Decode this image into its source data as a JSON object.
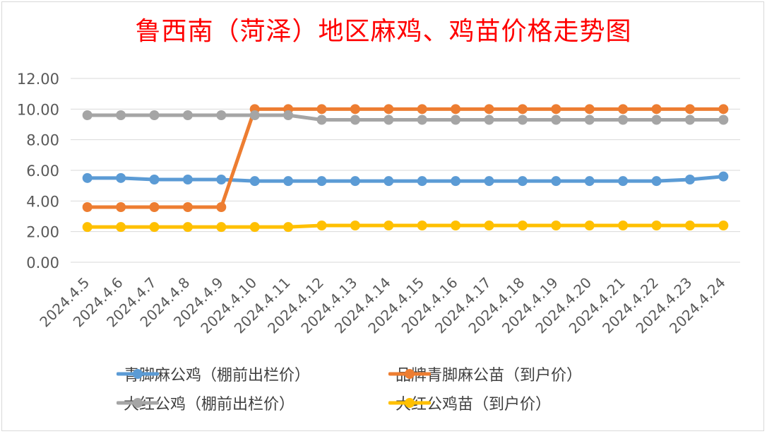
{
  "chart_data": {
    "type": "line",
    "title": "鲁西南（菏泽）地区麻鸡、鸡苗价格走势图",
    "x": [
      "2024.4.5",
      "2024.4.6",
      "2024.4.7",
      "2024.4.8",
      "2024.4.9",
      "2024.4.10",
      "2024.4.11",
      "2024.4.12",
      "2024.4.13",
      "2024.4.14",
      "2024.4.15",
      "2024.4.16",
      "2024.4.17",
      "2024.4.18",
      "2024.4.19",
      "2024.4.20",
      "2024.4.21",
      "2024.4.22",
      "2024.4.23",
      "2024.4.24"
    ],
    "yticks": [
      "0.00",
      "2.00",
      "4.00",
      "6.00",
      "8.00",
      "10.00",
      "12.00"
    ],
    "ylim": [
      0,
      12
    ],
    "grid": true,
    "legend_position": "bottom",
    "series": [
      {
        "name": "青脚麻公鸡（棚前出栏价）",
        "color": "#5b9bd5",
        "values": [
          5.5,
          5.5,
          5.4,
          5.4,
          5.4,
          5.3,
          5.3,
          5.3,
          5.3,
          5.3,
          5.3,
          5.3,
          5.3,
          5.3,
          5.3,
          5.3,
          5.3,
          5.3,
          5.4,
          5.6
        ]
      },
      {
        "name": "品牌青脚麻公苗（到户价）",
        "color": "#ed7d31",
        "values": [
          3.6,
          3.6,
          3.6,
          3.6,
          3.6,
          10.0,
          10.0,
          10.0,
          10.0,
          10.0,
          10.0,
          10.0,
          10.0,
          10.0,
          10.0,
          10.0,
          10.0,
          10.0,
          10.0,
          10.0
        ]
      },
      {
        "name": "大红公鸡（棚前出栏价）",
        "color": "#a5a5a5",
        "values": [
          9.6,
          9.6,
          9.6,
          9.6,
          9.6,
          9.6,
          9.6,
          9.3,
          9.3,
          9.3,
          9.3,
          9.3,
          9.3,
          9.3,
          9.3,
          9.3,
          9.3,
          9.3,
          9.3,
          9.3
        ]
      },
      {
        "name": "大红公鸡苗（到户价）",
        "color": "#ffc000",
        "values": [
          2.3,
          2.3,
          2.3,
          2.3,
          2.3,
          2.3,
          2.3,
          2.4,
          2.4,
          2.4,
          2.4,
          2.4,
          2.4,
          2.4,
          2.4,
          2.4,
          2.4,
          2.4,
          2.4,
          2.4
        ]
      }
    ]
  }
}
